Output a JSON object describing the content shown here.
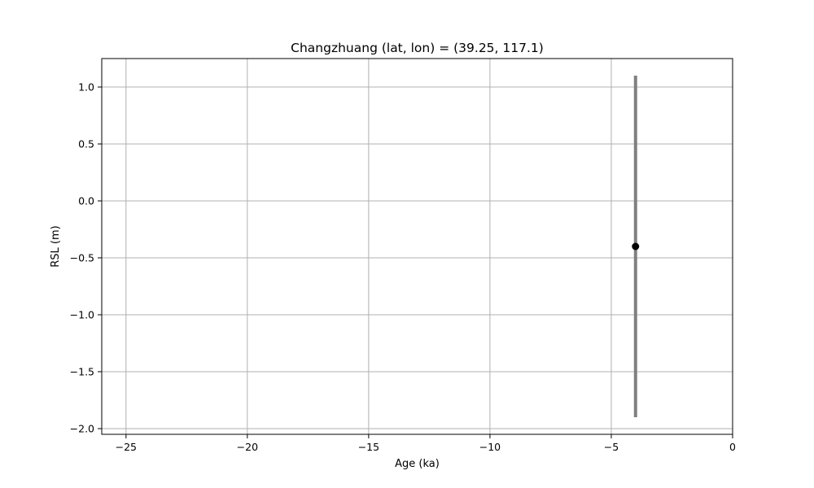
{
  "chart_data": {
    "type": "scatter",
    "title": "Changzhuang (lat, lon) = (39.25, 117.1)",
    "xlabel": "Age (ka)",
    "ylabel": "RSL (m)",
    "xlim": [
      -26,
      0
    ],
    "ylim": [
      -2.05,
      1.25
    ],
    "xticks": [
      -25,
      -20,
      -15,
      -10,
      -5,
      0
    ],
    "xtick_labels": [
      "−25",
      "−20",
      "−15",
      "−10",
      "−5",
      "0"
    ],
    "yticks": [
      1.0,
      0.5,
      0.0,
      -0.5,
      -1.0,
      -1.5,
      -2.0
    ],
    "ytick_labels": [
      "1.0",
      "0.5",
      "0.0",
      "−0.5",
      "−1.0",
      "−1.5",
      "−2.0"
    ],
    "grid": true,
    "points": [
      {
        "x": -4.0,
        "y": -0.4,
        "y_low": -1.9,
        "y_high": 1.1
      }
    ],
    "colors": {
      "marker": "#000000",
      "errorbar": "#808080",
      "grid": "#b0b0b0"
    }
  }
}
